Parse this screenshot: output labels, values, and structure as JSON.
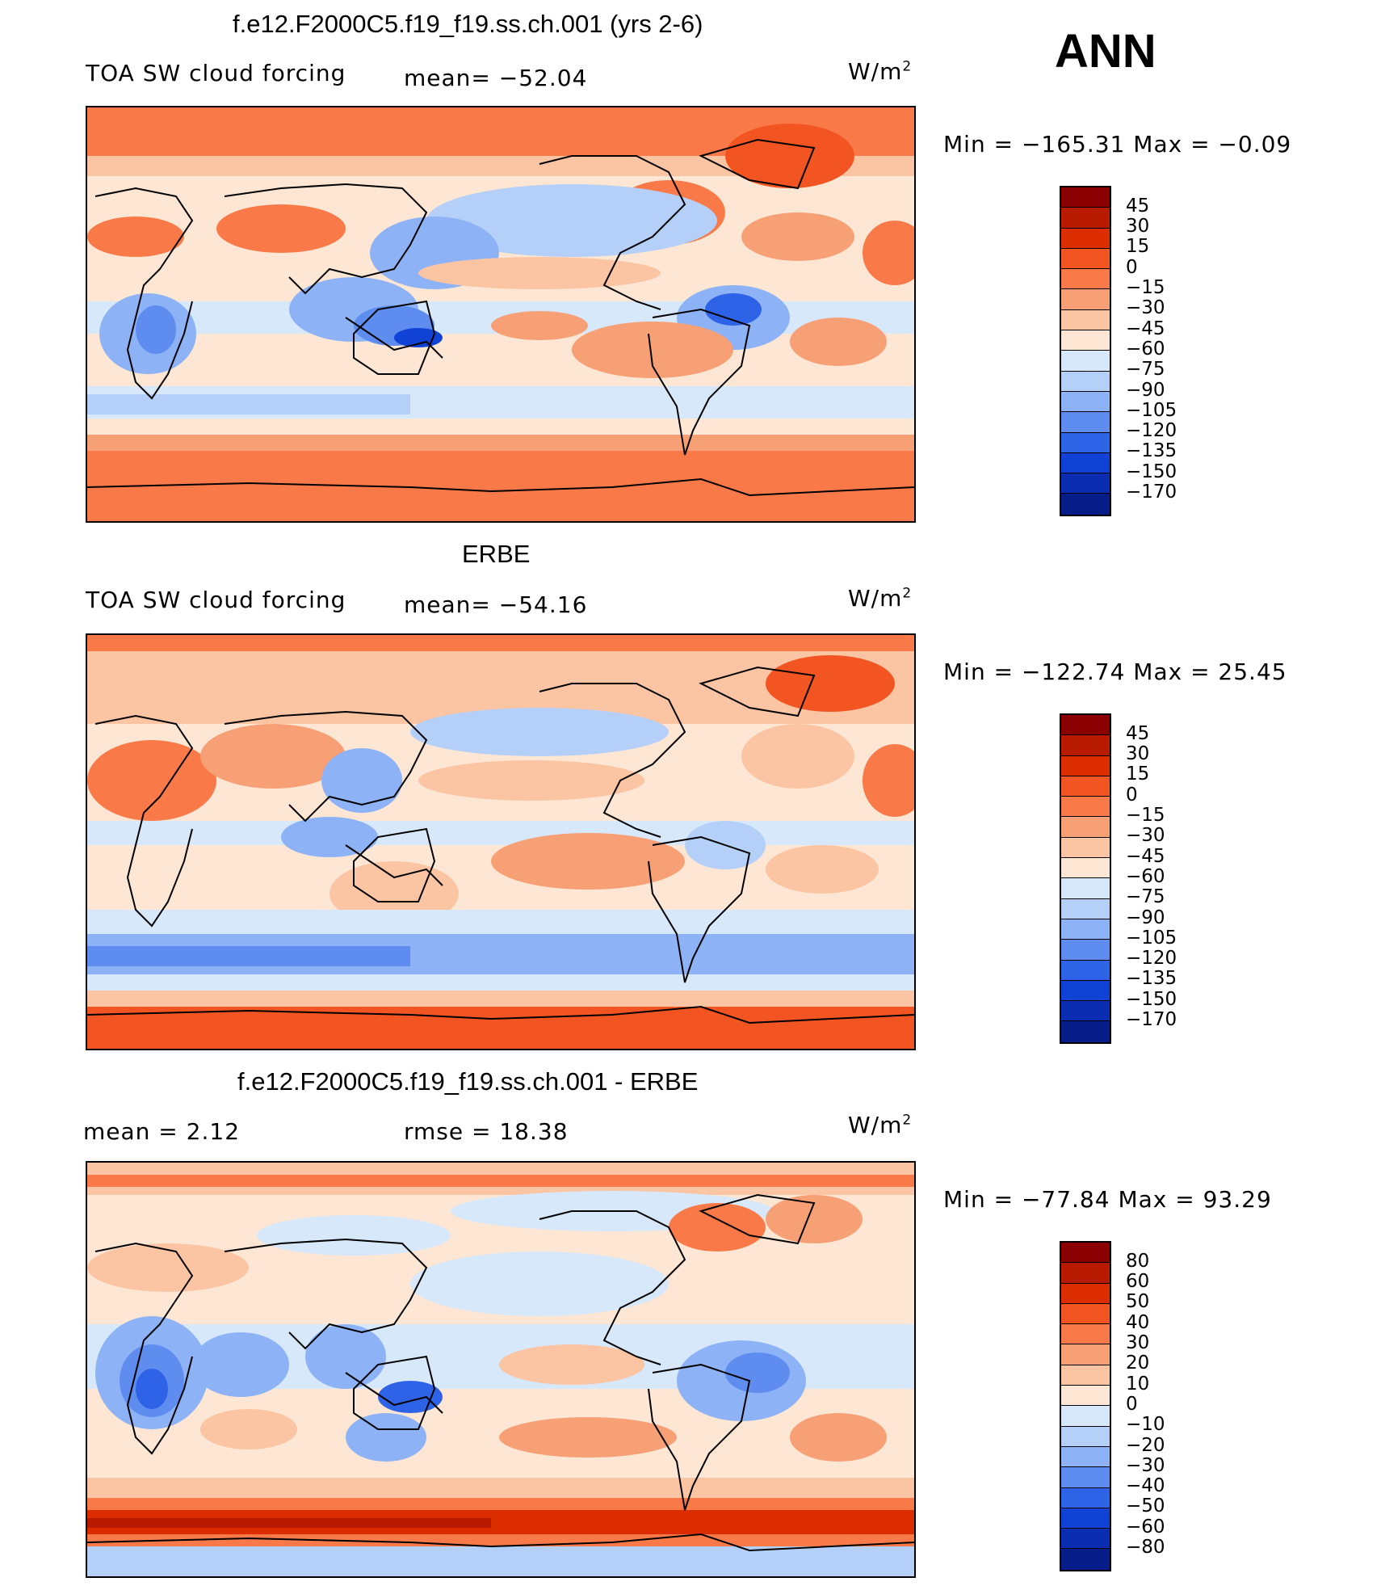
{
  "season": "ANN",
  "units_base": "W/m",
  "units_exp": "2",
  "panels": [
    {
      "title": "f.e12.F2000C5.f19_f19.ss.ch.001 (yrs 2-6)",
      "left_label": "TOA SW cloud forcing",
      "stat_label": "mean= −52.04",
      "minmax": "Min = −165.31 Max =  −0.09",
      "ticks": [
        "45",
        "30",
        "15",
        "0",
        "−15",
        "−30",
        "−45",
        "−60",
        "−75",
        "−90",
        "−105",
        "−120",
        "−135",
        "−150",
        "−170"
      ],
      "colors": [
        "#8b0000",
        "#b81a00",
        "#dc2d00",
        "#f25522",
        "#f97a48",
        "#f8a075",
        "#fbc4a3",
        "#fde6d4",
        "#d7e8fb",
        "#b4cff8",
        "#8db2f5",
        "#5e8def",
        "#2f63e7",
        "#1142d6",
        "#0a2db2",
        "#061d8a"
      ]
    },
    {
      "title": "ERBE",
      "left_label": "TOA SW cloud forcing",
      "stat_label": "mean= −54.16",
      "minmax": "Min = −122.74 Max =   25.45",
      "ticks": [
        "45",
        "30",
        "15",
        "0",
        "−15",
        "−30",
        "−45",
        "−60",
        "−75",
        "−90",
        "−105",
        "−120",
        "−135",
        "−150",
        "−170"
      ],
      "colors": [
        "#8b0000",
        "#b81a00",
        "#dc2d00",
        "#f25522",
        "#f97a48",
        "#f8a075",
        "#fbc4a3",
        "#fde6d4",
        "#d7e8fb",
        "#b4cff8",
        "#8db2f5",
        "#5e8def",
        "#2f63e7",
        "#1142d6",
        "#0a2db2",
        "#061d8a"
      ]
    },
    {
      "title": "f.e12.F2000C5.f19_f19.ss.ch.001 - ERBE",
      "left_label": "mean =    2.12",
      "stat_label": "rmse =   18.38",
      "minmax": "Min = −77.84 Max =   93.29",
      "ticks": [
        "80",
        "60",
        "50",
        "40",
        "30",
        "20",
        "10",
        "0",
        "−10",
        "−20",
        "−30",
        "−40",
        "−50",
        "−60",
        "−80"
      ],
      "colors": [
        "#8b0000",
        "#b81a00",
        "#dc2d00",
        "#f25522",
        "#f97a48",
        "#f8a075",
        "#fbc4a3",
        "#fde6d4",
        "#d7e8fb",
        "#b4cff8",
        "#8db2f5",
        "#5e8def",
        "#2f63e7",
        "#1142d6",
        "#0a2db2",
        "#061d8a"
      ]
    }
  ]
}
